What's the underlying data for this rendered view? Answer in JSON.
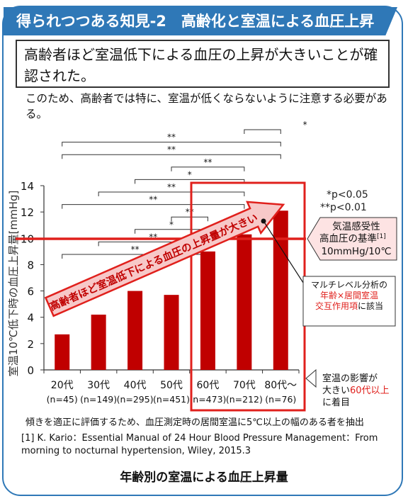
{
  "banner": "得られつつある知見-2　高齢化と室温による血圧上昇",
  "conclusion": "高齢者ほど室温低下による血圧の上昇が大きいことが確認された。",
  "note": "このため、高齢者では特に、室温が低くならないように注意する必要がある。",
  "arrow_text": "高齢者ほど室温低下による血圧の上昇量が大きい",
  "significance_legend": [
    "*p<0.05",
    "**p<0.01"
  ],
  "callout_threshold": {
    "line1": "気温感受性",
    "line2": "高血圧の基準",
    "ref": "[1]",
    "line3": "10mmHg/10℃"
  },
  "callout_interaction": {
    "line1": "マルチレベル分析の",
    "line2": "年齢×居間室温",
    "line3": "交互作用項",
    "line4": "に該当"
  },
  "callout_bottom": {
    "line1": "室温の影響が",
    "line2a": "大きい",
    "line2b": "60代以上",
    "line3": "に着目"
  },
  "method_note": "傾きを適正に評価するため、血圧測定時の居間室温に5℃以上の幅のある者を抽出",
  "reference": "[1]  K. Kario：Essential Manual of 24 Hour Blood Pressure Management：From morning to nocturnal hypertension, Wiley, 2015.3",
  "caption": "年齢別の室温による血圧上昇量",
  "colors": {
    "accent": "#2f78b7",
    "bar": "#c00000",
    "highlight": "#e0201c"
  },
  "chart_data": {
    "type": "bar",
    "categories": [
      "20代",
      "30代",
      "40代",
      "50代",
      "60代",
      "70代",
      "80代～"
    ],
    "n_labels": [
      "(n=45)",
      "(n=149)",
      "(n=295)",
      "(n=451)",
      "(n=473)",
      "(n=212)",
      "(n=76)"
    ],
    "values": [
      2.7,
      4.2,
      6.0,
      5.7,
      9.0,
      10.3,
      12.1
    ],
    "ylabel": "室温10℃低下時の血圧上昇量[mmHg]",
    "ylim": [
      0,
      14
    ],
    "yticks": [
      0,
      2,
      4,
      6,
      8,
      10,
      12,
      14
    ],
    "reference_line": 10,
    "significance": [
      {
        "from": 5,
        "to": 6,
        "label": "*"
      },
      {
        "from": 0,
        "to": 6,
        "label": "**"
      },
      {
        "from": 0,
        "to": 6,
        "label": "**"
      },
      {
        "from": 3,
        "to": 5,
        "label": "**"
      },
      {
        "from": 2,
        "to": 5,
        "label": "*"
      },
      {
        "from": 1,
        "to": 5,
        "label": "**"
      },
      {
        "from": 0,
        "to": 5,
        "label": "**"
      },
      {
        "from": 3,
        "to": 4,
        "label": "**"
      },
      {
        "from": 2,
        "to": 4,
        "label": "*"
      },
      {
        "from": 1,
        "to": 4,
        "label": "**"
      },
      {
        "from": 0,
        "to": 4,
        "label": "**"
      }
    ]
  }
}
